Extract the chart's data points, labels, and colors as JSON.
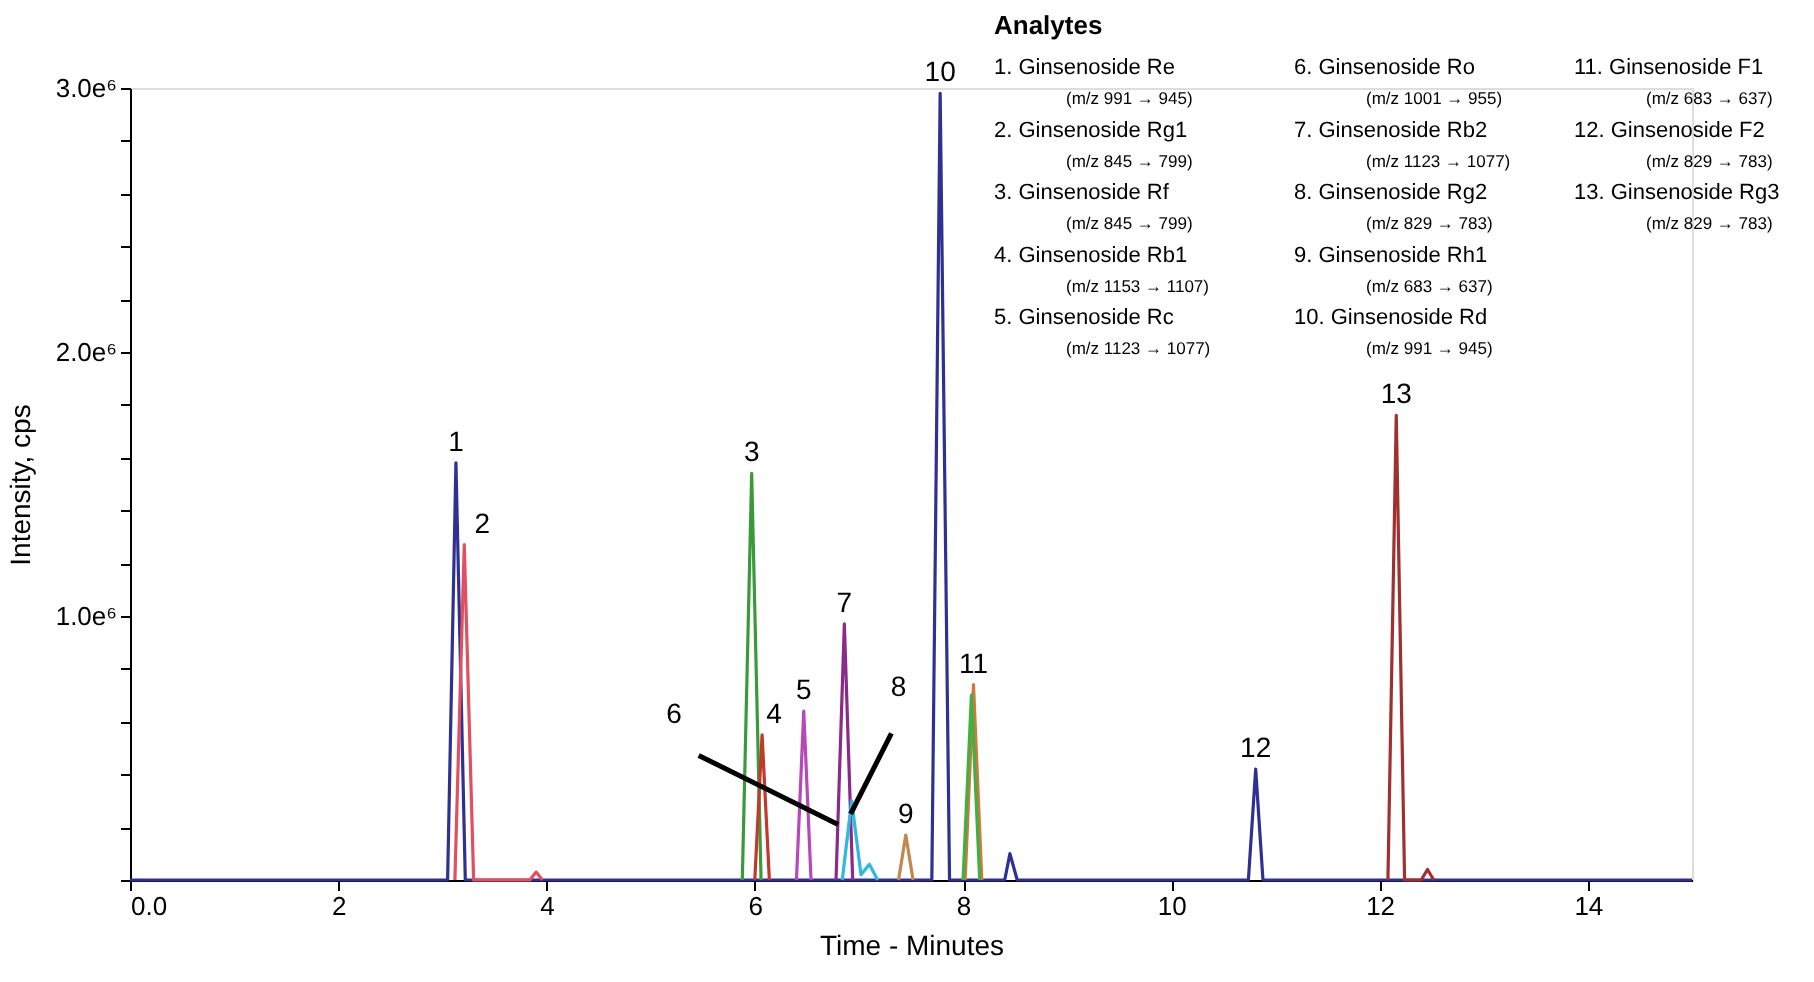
{
  "chart_data": {
    "type": "line",
    "xlabel": "Time - Minutes",
    "ylabel": "Intensity, cps",
    "xlim": [
      0,
      15
    ],
    "xticks": [
      {
        "value": 0,
        "label": "0.0"
      },
      2,
      4,
      6,
      8,
      10,
      12,
      14
    ],
    "ylim": [
      0,
      3
    ],
    "yticks": [
      {
        "value": 0,
        "label": null
      },
      {
        "value": 0.2,
        "label": null
      },
      {
        "value": 0.4,
        "label": null
      },
      {
        "value": 0.6,
        "label": null
      },
      {
        "value": 0.8,
        "label": null
      },
      {
        "value": 1,
        "label": "1.0e⁶"
      },
      {
        "value": 1.2,
        "label": null
      },
      {
        "value": 1.4,
        "label": null
      },
      {
        "value": 1.6,
        "label": null
      },
      {
        "value": 1.8,
        "label": null
      },
      {
        "value": 2,
        "label": "2.0e⁶"
      },
      {
        "value": 2.2,
        "label": null
      },
      {
        "value": 2.4,
        "label": null
      },
      {
        "value": 2.6,
        "label": null
      },
      {
        "value": 2.8,
        "label": null
      },
      {
        "value": 3,
        "label": "3.0e⁶"
      }
    ],
    "grid": false,
    "legend": false,
    "marker": "none",
    "line_style": "solid",
    "series": [
      {
        "color": "#2e3192",
        "x": [
          0,
          3.05,
          3.13,
          3.22,
          7.7,
          7.78,
          7.87,
          8.4,
          8.45,
          8.52,
          10.74,
          10.81,
          10.88,
          15
        ],
        "values": [
          0,
          0,
          1.58,
          0,
          0,
          2.98,
          0,
          0,
          0.1,
          0,
          0,
          0.42,
          0,
          0
        ]
      },
      {
        "color": "#e05060",
        "x": [
          3.12,
          3.21,
          3.3,
          3.84,
          3.9,
          3.96
        ],
        "values": [
          0,
          1.27,
          0,
          0,
          0.03,
          0
        ]
      },
      {
        "color": "#3a9a3a",
        "x": [
          5.88,
          5.97,
          6.06
        ],
        "values": [
          0,
          1.54,
          0
        ]
      },
      {
        "color": "#c0392b",
        "x": [
          6.0,
          6.07,
          6.14
        ],
        "values": [
          0,
          0.55,
          0
        ]
      },
      {
        "color": "#b848b8",
        "x": [
          6.4,
          6.47,
          6.54
        ],
        "values": [
          0,
          0.64,
          0
        ]
      },
      {
        "color": "#8a2a8a",
        "x": [
          6.78,
          6.86,
          6.94
        ],
        "values": [
          0,
          0.97,
          0
        ]
      },
      {
        "color": "#30b8e0",
        "x": [
          6.84,
          6.93,
          7.02,
          7.1,
          7.18
        ],
        "values": [
          0,
          0.3,
          0.02,
          0.06,
          0
        ]
      },
      {
        "color": "#c08850",
        "x": [
          7.38,
          7.45,
          7.52
        ],
        "values": [
          0,
          0.17,
          0
        ]
      },
      {
        "color": "#d07840",
        "x": [
          8.02,
          8.1,
          8.18
        ],
        "values": [
          0,
          0.74,
          0
        ]
      },
      {
        "color": "#40b040",
        "x": [
          8.0,
          8.08,
          8.16
        ],
        "values": [
          0,
          0.7,
          0
        ]
      },
      {
        "color": "#a03030",
        "x": [
          12.08,
          12.16,
          12.24,
          12.4,
          12.46,
          12.52
        ],
        "values": [
          0,
          1.76,
          0,
          0,
          0.04,
          0
        ]
      }
    ],
    "annotations": [
      "Analytes",
      "1.  Ginsenoside Re",
      "(m/z 991 → 945)",
      "2.  Ginsenoside Rg1",
      "(m/z 845 → 799)",
      "3.  Ginsenoside Rf",
      "(m/z 845 → 799)",
      "4.  Ginsenoside Rb1",
      "(m/z 1153 → 1107)",
      "5.  Ginsenoside Rc",
      "(m/z 1123 → 1077)",
      "6.  Ginsenoside Ro",
      "(m/z 1001 → 955)",
      "7.  Ginsenoside Rb2",
      "(m/z 1123 → 1077)",
      "8.  Ginsenoside Rg2",
      "(m/z 829 → 783)",
      "9.  Ginsenoside Rh1",
      "(m/z 683 → 637)",
      "10. Ginsenoside Rd",
      "(m/z 991 → 945)",
      "11. Ginsenoside F1",
      "(m/z 683 → 637)",
      "12. Ginsenoside F2",
      "(m/z 829 → 783)",
      "13. Ginsenoside Rg3",
      "(m/z 829 → 783)",
      {
        "text": "1",
        "x": 3.13,
        "y": 1.58
      },
      {
        "text": "2",
        "x": 3.21,
        "y": 1.27
      },
      {
        "text": "3",
        "x": 5.97,
        "y": 1.54
      },
      {
        "text": "4",
        "x": 6.07,
        "y": 0.55
      },
      {
        "text": "5",
        "x": 6.47,
        "y": 0.64
      },
      {
        "text": "6",
        "x": 6.8,
        "y": 0.21
      },
      {
        "text": "7",
        "x": 6.86,
        "y": 0.97
      },
      {
        "text": "8",
        "x": 6.92,
        "y": 0.25
      },
      {
        "text": "9",
        "x": 7.45,
        "y": 0.17
      },
      {
        "text": "10",
        "x": 7.78,
        "y": 2.98
      },
      {
        "text": "11",
        "x": 8.1,
        "y": 0.74
      },
      {
        "text": "12",
        "x": 10.81,
        "y": 0.42
      },
      {
        "text": "13",
        "x": 12.16,
        "y": 1.76
      }
    ]
  }
}
